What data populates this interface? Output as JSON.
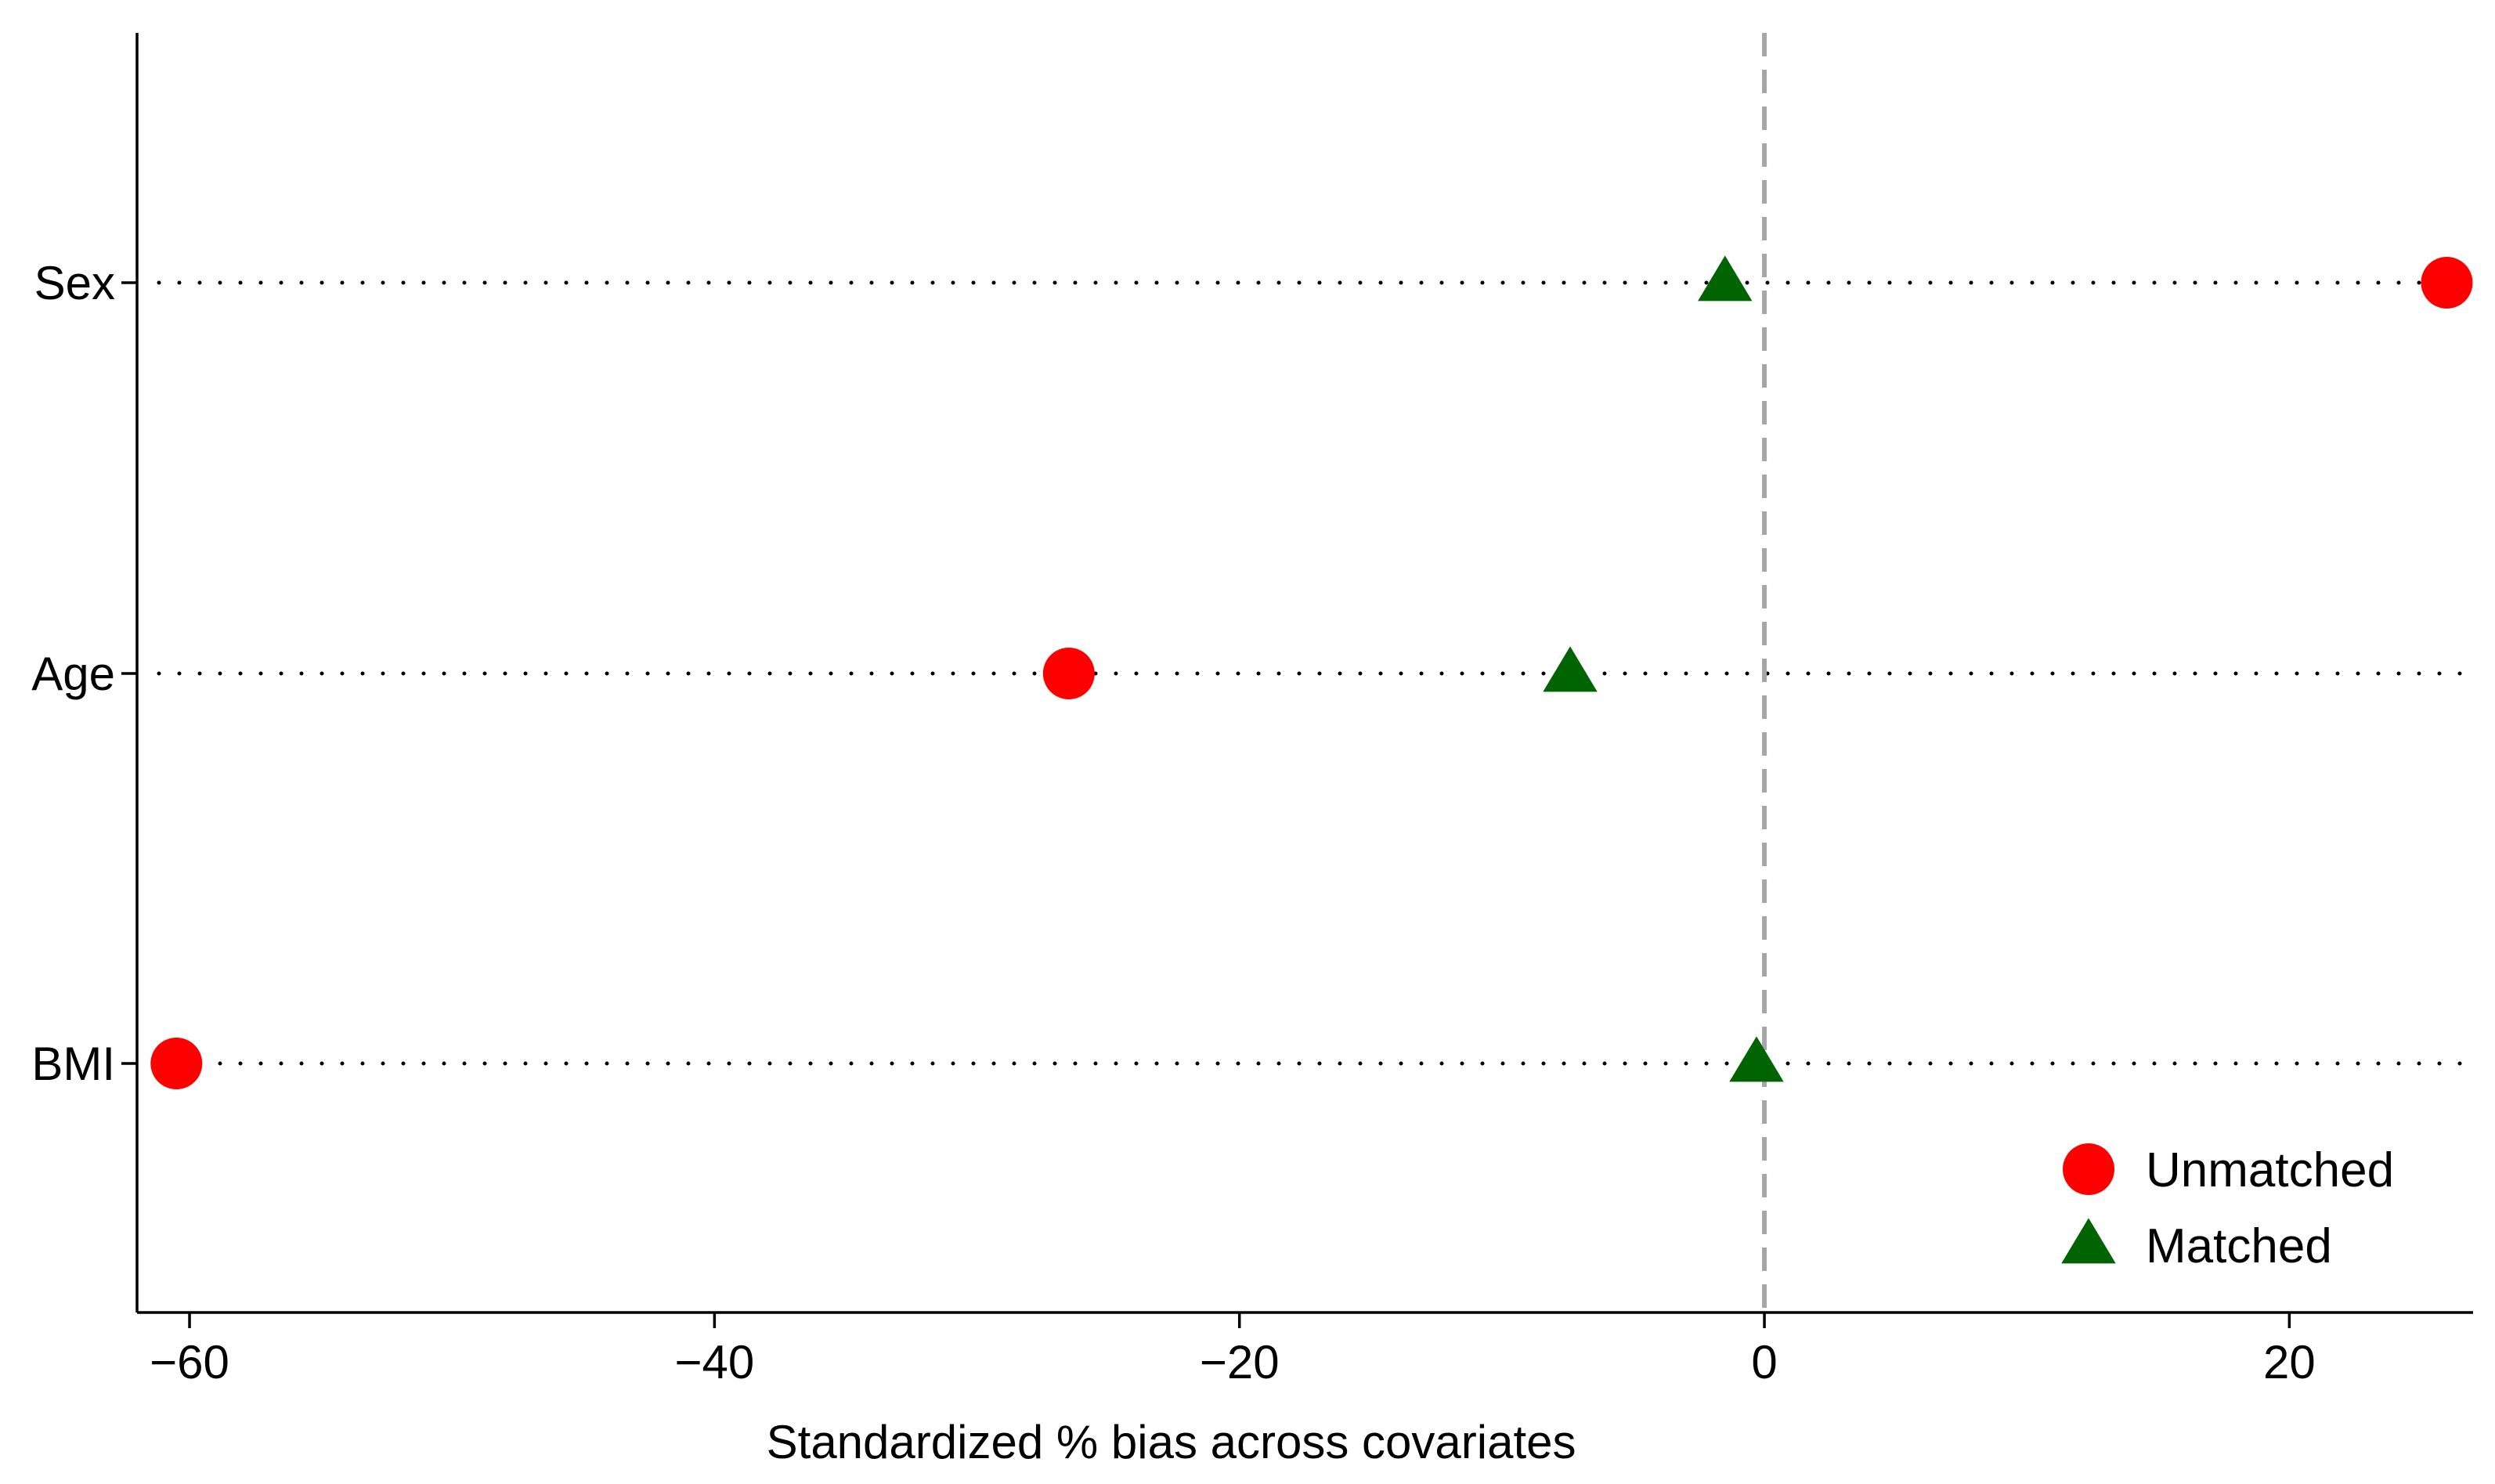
{
  "chart_data": {
    "type": "scatter",
    "title": "",
    "xlabel": "Standardized % bias across covariates",
    "ylabel": "",
    "xlim": [
      -62.0,
      27.0
    ],
    "xticks": [
      -60,
      -40,
      -20,
      0,
      20
    ],
    "xtick_labels": [
      "−60",
      "−40",
      "−20",
      "0",
      "20"
    ],
    "categories": [
      "Sex",
      "Age",
      "BMI"
    ],
    "reference_line": {
      "x": 0,
      "style": "dashed",
      "color": "#a6a6a6"
    },
    "series": [
      {
        "name": "Unmatched",
        "marker": "circle",
        "color": "#ff0000",
        "values": [
          26.0,
          -26.5,
          -60.5
        ]
      },
      {
        "name": "Matched",
        "marker": "triangle",
        "color": "#006400",
        "values": [
          -1.5,
          -7.4,
          -0.3
        ]
      }
    ],
    "legend": {
      "position": "bottom-right",
      "entries": [
        "Unmatched",
        "Matched"
      ]
    },
    "grid": false,
    "row_guides": "dotted"
  }
}
